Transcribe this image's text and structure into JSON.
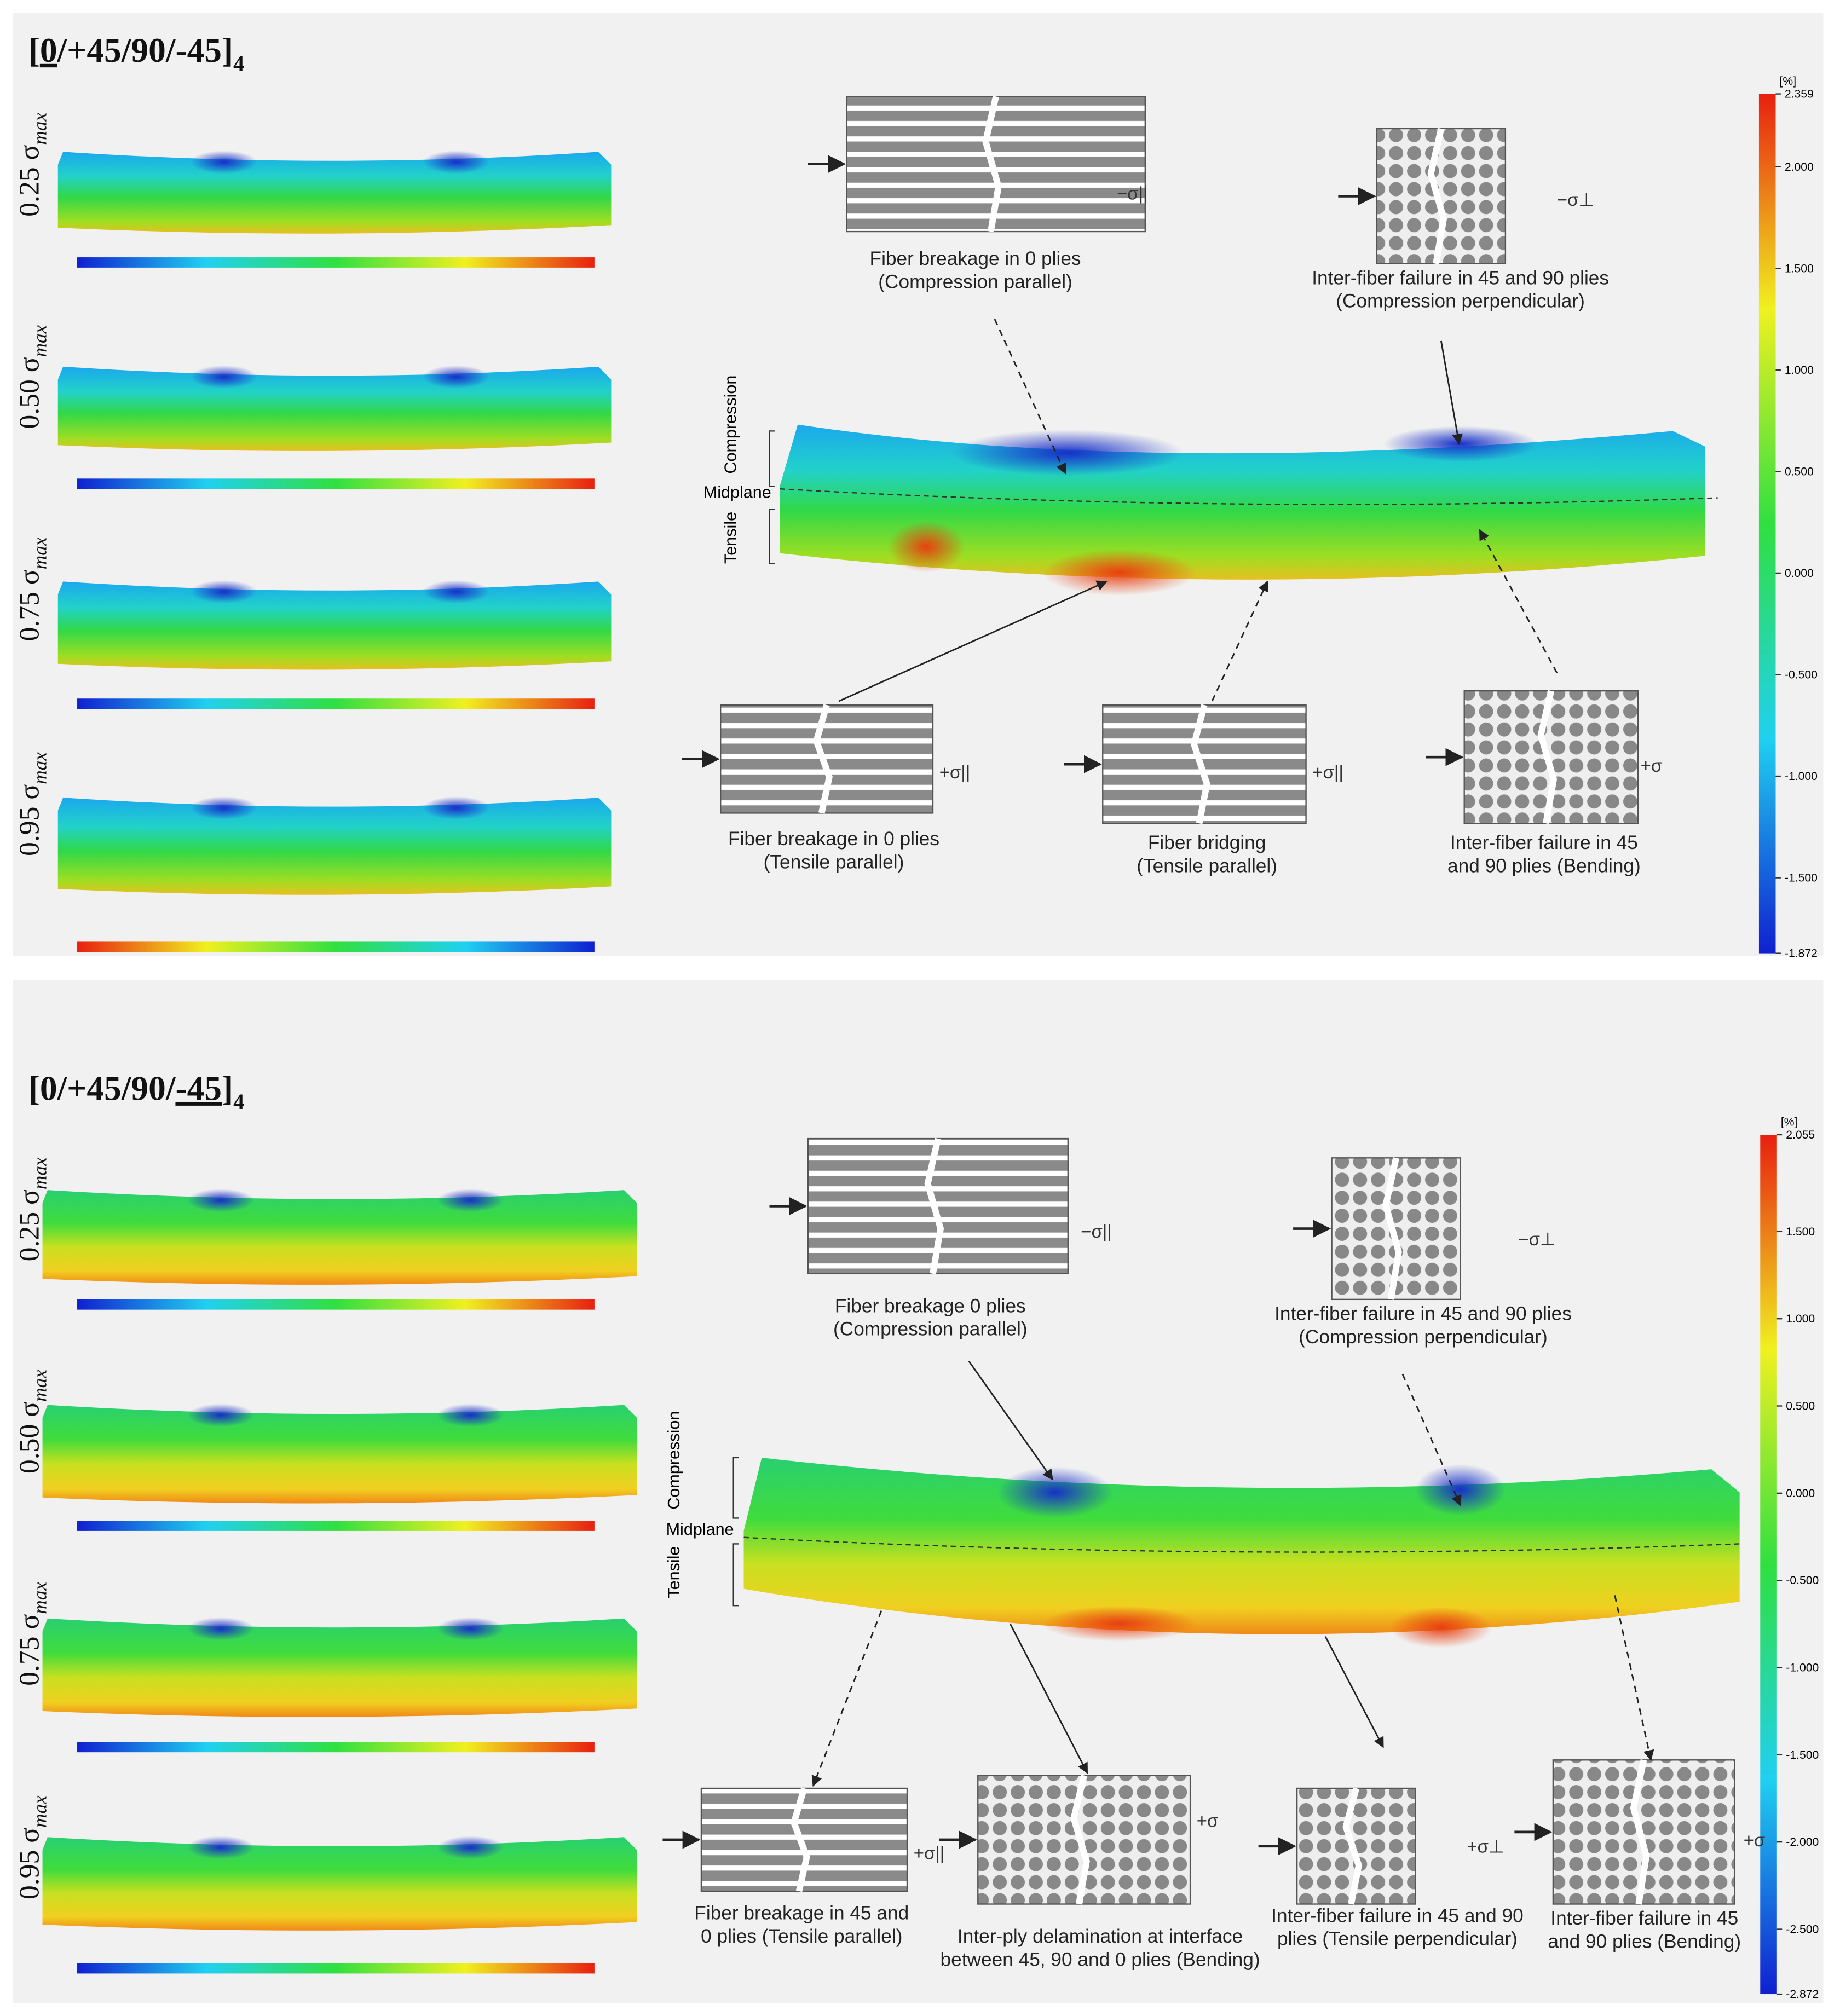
{
  "panels": [
    {
      "title": {
        "parts": [
          "[",
          "0",
          "/+45/90/-45]"
        ],
        "underlined": 1,
        "subscript": "4"
      },
      "rows": [
        {
          "label": "0.25 σ",
          "sub": "max"
        },
        {
          "label": "0.50 σ",
          "sub": "max"
        },
        {
          "label": "0.75 σ",
          "sub": "max"
        },
        {
          "label": "0.95 σ",
          "sub": "max"
        }
      ],
      "zone_labels": {
        "compression": "Compression",
        "midplane": "Midplane",
        "tensile": "Tensile"
      },
      "colorbar": {
        "unit": "[%]",
        "ticks": [
          "2.359",
          "2.000",
          "1.500",
          "1.000",
          "0.500",
          "0.000",
          "-0.500",
          "-1.000",
          "-1.500",
          "-1.872"
        ]
      },
      "mechanisms": [
        {
          "lines": [
            "Fiber breakage in 0 plies",
            "(Compression parallel)"
          ],
          "symbol": "−σ||"
        },
        {
          "lines": [
            "Inter-fiber failure in 45 and 90 plies",
            "(Compression perpendicular)"
          ],
          "symbol": "−σ⊥"
        },
        {
          "lines": [
            "Fiber breakage in 0 plies",
            "(Tensile parallel)"
          ],
          "symbol": "+σ||"
        },
        {
          "lines": [
            "Fiber bridging",
            "(Tensile parallel)"
          ],
          "symbol": "+σ||"
        },
        {
          "lines": [
            "Inter-fiber failure in 45",
            "and 90 plies (Bending)"
          ],
          "symbol": "+σ"
        }
      ]
    },
    {
      "title": {
        "parts": [
          "[0/+45/90/",
          "-45",
          "]"
        ],
        "underlined": 1,
        "subscript": "4"
      },
      "rows": [
        {
          "label": "0.25 σ",
          "sub": "max"
        },
        {
          "label": "0.50 σ",
          "sub": "max"
        },
        {
          "label": "0.75 σ",
          "sub": "max"
        },
        {
          "label": "0.95 σ",
          "sub": "max"
        }
      ],
      "zone_labels": {
        "compression": "Compression",
        "midplane": "Midplane",
        "tensile": "Tensile"
      },
      "colorbar": {
        "unit": "[%]",
        "ticks": [
          "2.055",
          "1.500",
          "1.000",
          "0.500",
          "0.000",
          "-0.500",
          "-1.000",
          "-1.500",
          "-2.000",
          "-2.500",
          "-2.872"
        ]
      },
      "mechanisms": [
        {
          "lines": [
            "Fiber breakage 0 plies",
            "(Compression parallel)"
          ],
          "symbol": "−σ||"
        },
        {
          "lines": [
            "Inter-fiber failure in 45 and 90 plies",
            "(Compression perpendicular)"
          ],
          "symbol": "−σ⊥"
        },
        {
          "lines": [
            "Fiber breakage in 45 and",
            "0 plies (Tensile parallel)"
          ],
          "symbol": "+σ||"
        },
        {
          "lines": [
            "Inter-ply delamination at interface",
            "between 45, 90 and 0 plies (Bending)"
          ],
          "symbol": "+σ"
        },
        {
          "lines": [
            "Inter-fiber failure in 45 and 90",
            "plies (Tensile perpendicular)"
          ],
          "symbol": "+σ⊥"
        },
        {
          "lines": [
            "Inter-fiber failure in 45",
            "and 90 plies (Bending)"
          ],
          "symbol": "+σ"
        }
      ]
    }
  ]
}
